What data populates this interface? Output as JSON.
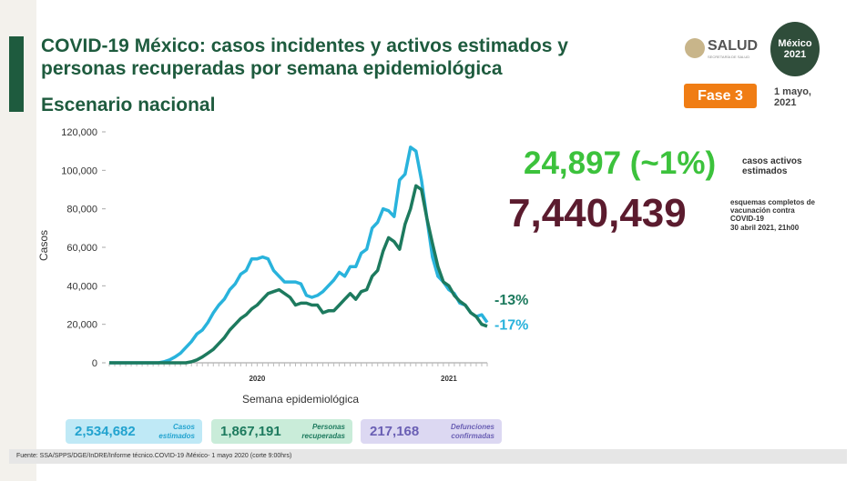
{
  "header": {
    "title": "COVID-19 México: casos incidentes y activos estimados y personas recuperadas por semana epidemiológica",
    "subtitle": "Escenario nacional",
    "logo": "SALUD",
    "logo_sub": "SECRETARÍA DE SALUD",
    "logo2": "México 2021",
    "phase": "Fase 3",
    "date": "1 mayo, 2021"
  },
  "stats": {
    "active": "24,897 (~1%)",
    "active_label": "casos activos estimados",
    "vaccines": "7,440,439",
    "vaccines_label": "esquemas completos de vacunación contra COVID-19",
    "vaccines_date": "30 abril 2021, 21h00"
  },
  "totals": {
    "cases": "2,534,682",
    "recovered": "1,867,191",
    "deaths": "217,168",
    "deaths_label": "Defunciones confirmadas"
  },
  "footer": "Fuente: SSA/SPPS/DGE/InDRE/Informe técnico.COVID-19 /México- 1 mayo 2020 (corte 9:00hrs)",
  "chart_data": {
    "type": "line",
    "x_label": "Semana epidemiológica",
    "y_label": "Casos",
    "categories": [
      null,
      null,
      null,
      null,
      null,
      null,
      null,
      null,
      null,
      null,
      null,
      null,
      null,
      null,
      null,
      null,
      null,
      null,
      null,
      null,
      null,
      null,
      null,
      null,
      null,
      null,
      null,
      "2020",
      null,
      null,
      null,
      null,
      null,
      null,
      null,
      null,
      null,
      null,
      null,
      null,
      null,
      null,
      null,
      null,
      null,
      null,
      null,
      null,
      null,
      null,
      null,
      null,
      null,
      null,
      null,
      null,
      null,
      null,
      null,
      null,
      null,
      null,
      "2021",
      null,
      null,
      null,
      null,
      null,
      null,
      null
    ],
    "ylim": [
      0,
      120000
    ],
    "yticks": [
      0,
      {
        "value": 20000,
        "label": "20,000"
      },
      {
        "value": 40000,
        "label": "40,000"
      },
      {
        "value": 60000,
        "label": "60,000"
      },
      {
        "value": 80000,
        "label": "80,000"
      },
      {
        "value": 100000,
        "label": "100,000"
      },
      {
        "value": 120000,
        "label": "120,000"
      }
    ],
    "series": [
      {
        "name": "Casos estimados",
        "color": "#29b3dc",
        "end_label": "-17%",
        "values": [
          0,
          0,
          0,
          0,
          0,
          0,
          0,
          0,
          0,
          0,
          500,
          1500,
          3000,
          5000,
          8000,
          11000,
          15000,
          17000,
          21000,
          26000,
          30000,
          33000,
          38000,
          41000,
          46000,
          48000,
          54000,
          54000,
          55000,
          54000,
          48000,
          45000,
          42000,
          42000,
          42000,
          41000,
          35000,
          34000,
          35000,
          37000,
          40000,
          43000,
          47000,
          45000,
          50000,
          50000,
          57000,
          59000,
          70000,
          73000,
          80000,
          79000,
          76000,
          95000,
          98000,
          112000,
          110000,
          95000,
          75000,
          55000,
          45000,
          42000,
          38000,
          36000,
          31000,
          30000,
          26000,
          24000,
          25000,
          21000
        ]
      },
      {
        "name": "Personas recuperadas",
        "color": "#1d7a5e",
        "end_label": "-13%",
        "values": [
          0,
          0,
          0,
          0,
          0,
          0,
          0,
          0,
          0,
          0,
          0,
          0,
          0,
          0,
          0,
          500,
          1500,
          3000,
          5000,
          7000,
          10000,
          13000,
          17000,
          20000,
          23000,
          25000,
          28000,
          30000,
          33000,
          36000,
          37000,
          38000,
          36000,
          34000,
          30000,
          31000,
          31000,
          30000,
          30000,
          26000,
          27000,
          27000,
          30000,
          33000,
          36000,
          33000,
          37000,
          38000,
          45000,
          48000,
          58000,
          65000,
          63000,
          59000,
          72000,
          80000,
          92000,
          90000,
          75000,
          62000,
          50000,
          42000,
          40000,
          35000,
          32000,
          30000,
          26000,
          24000,
          20000,
          19000
        ]
      }
    ]
  }
}
